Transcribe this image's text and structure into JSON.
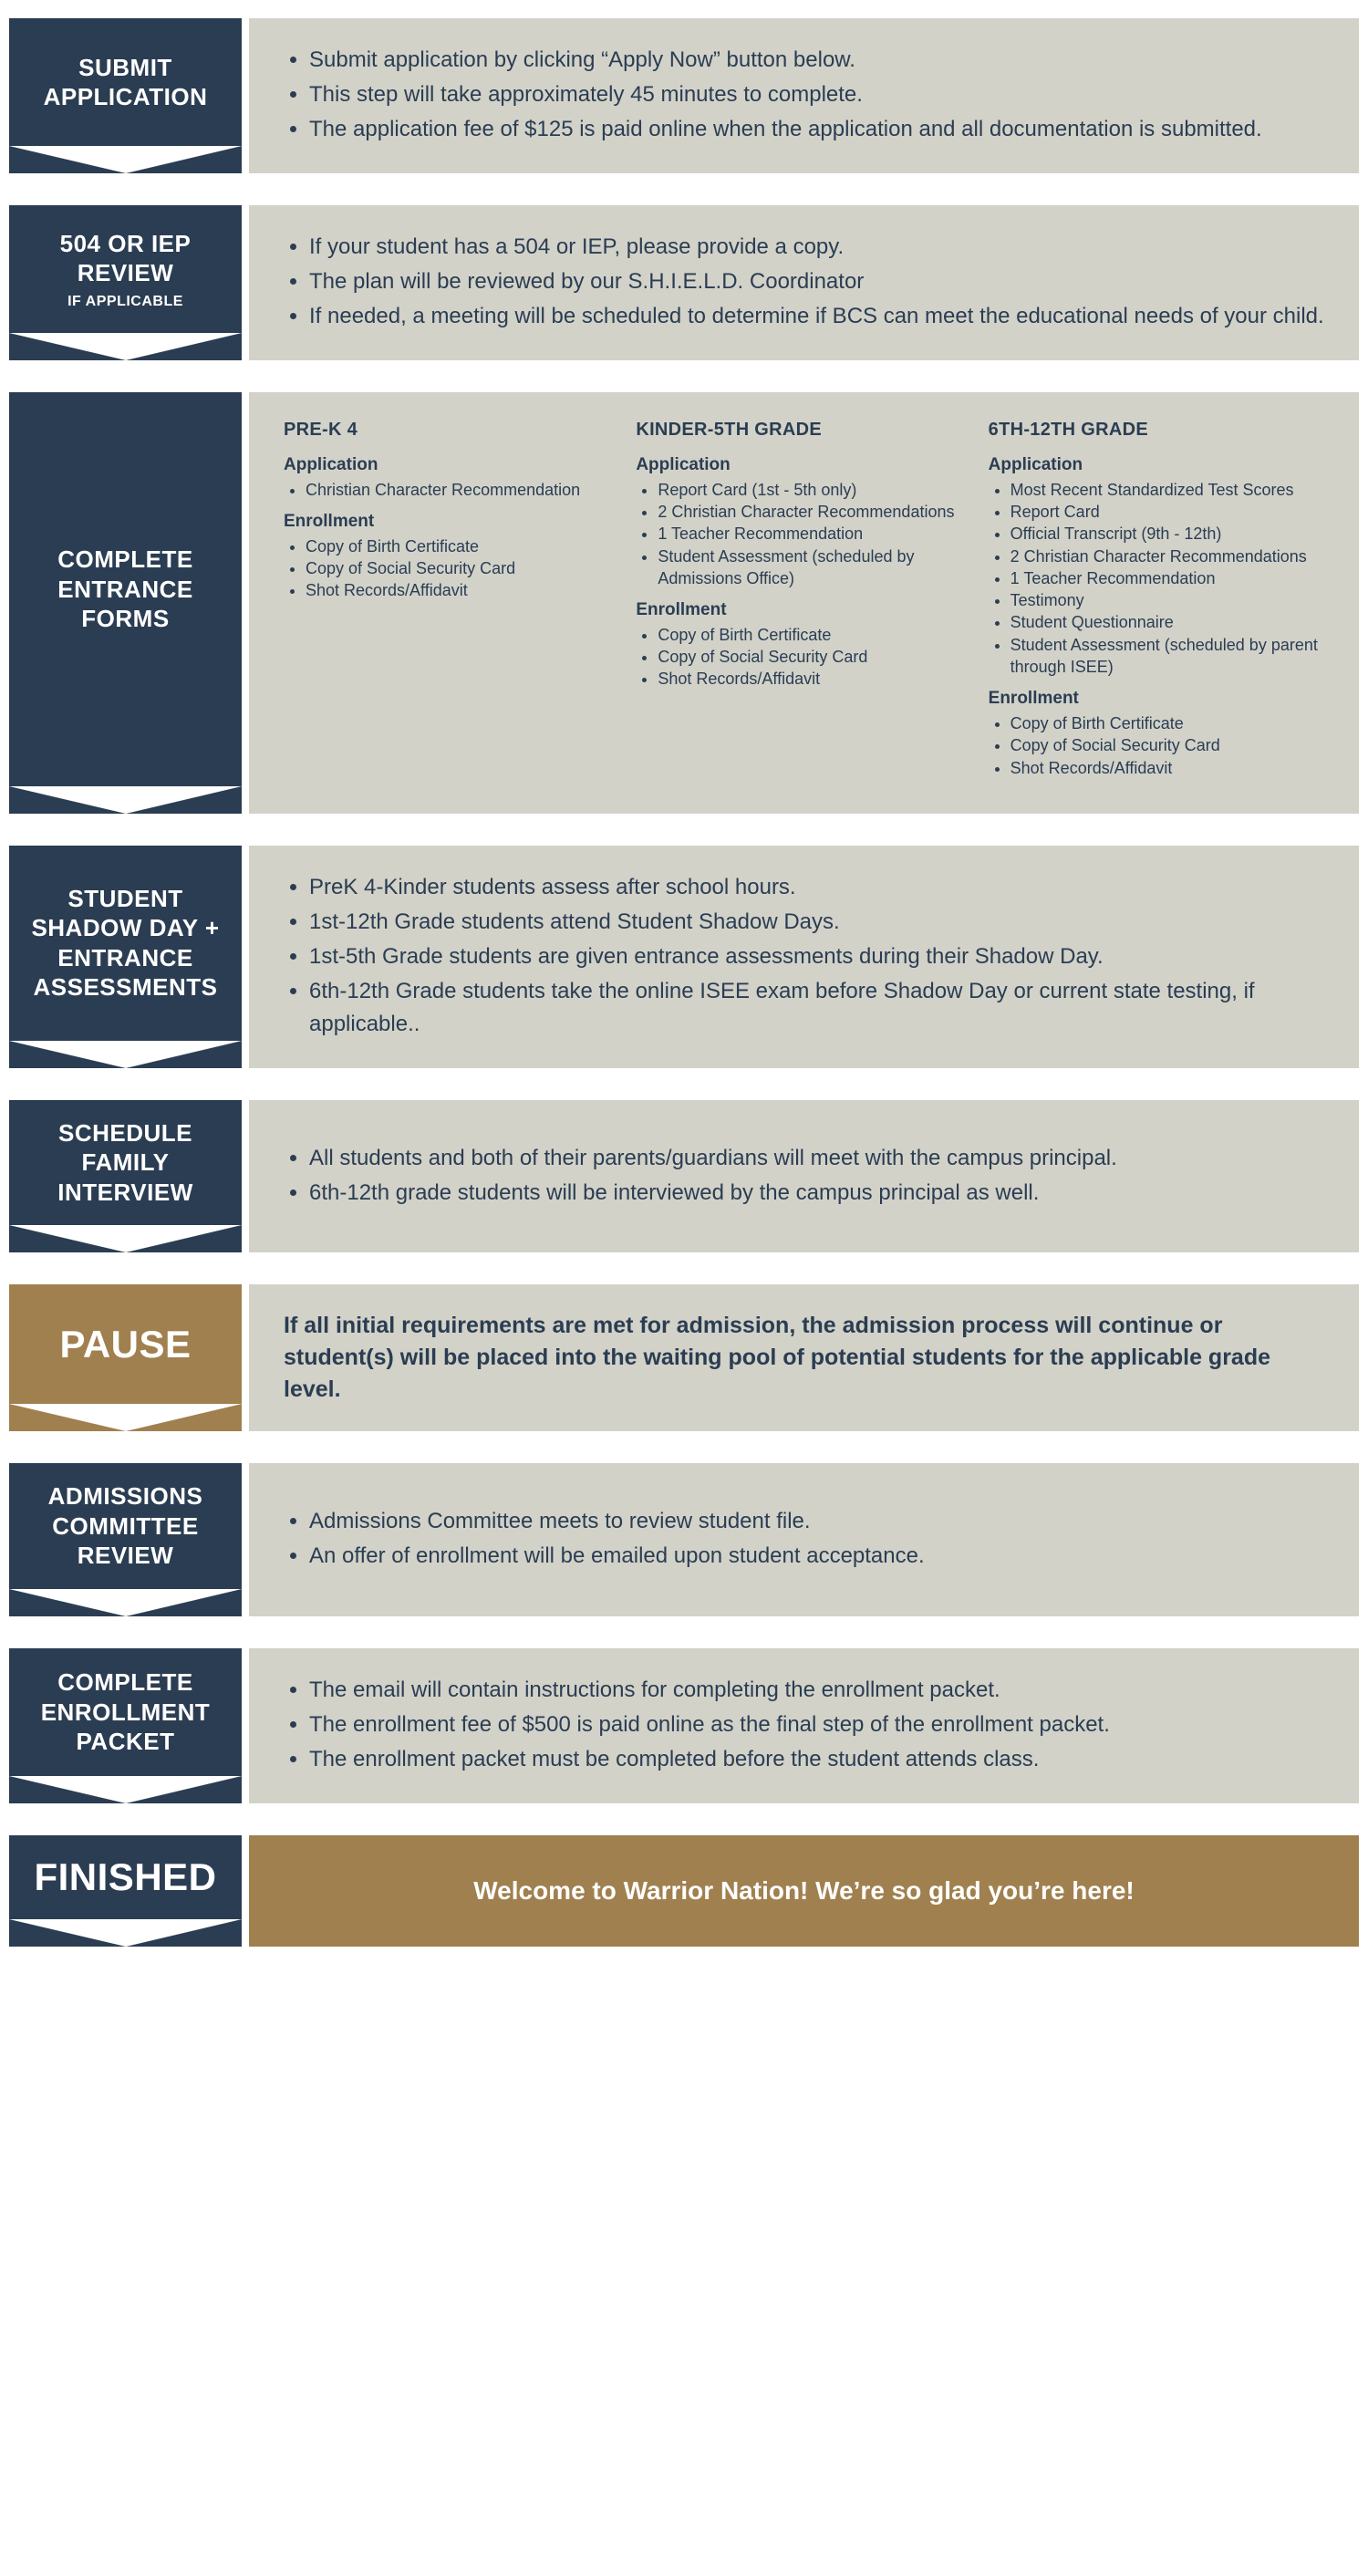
{
  "colors": {
    "navy": "#2b3d52",
    "gold": "#a0804f",
    "panel": "#d2d2c9",
    "white": "#ffffff"
  },
  "steps": [
    {
      "id": "submit",
      "ribbon_style": "navy",
      "title": "SUBMIT APPLICATION",
      "subtitle": "",
      "content_type": "bullets",
      "bullets": [
        "Submit application by clicking “Apply Now” button below.",
        "This step will take approximately 45 minutes to complete.",
        "The application fee of $125 is paid online when the application and all documentation is submitted."
      ]
    },
    {
      "id": "iep",
      "ribbon_style": "navy",
      "title": "504 OR IEP REVIEW",
      "subtitle": "IF APPLICABLE",
      "content_type": "bullets",
      "bullets": [
        "If your student has a 504 or IEP, please provide a copy.",
        "The plan will be reviewed by our S.H.I.E.L.D. Coordinator",
        "If needed, a meeting will be scheduled to determine if BCS can meet the educational needs of your child."
      ]
    },
    {
      "id": "forms",
      "ribbon_style": "navy",
      "title": "COMPLETE ENTRANCE FORMS",
      "subtitle": "",
      "content_type": "columns",
      "columns": [
        {
          "heading": "PRE-K 4",
          "sections": [
            {
              "label": "Application",
              "items": [
                "Christian Character Recommendation"
              ]
            },
            {
              "label": "Enrollment",
              "items": [
                "Copy of Birth Certificate",
                "Copy of Social Security Card",
                "Shot Records/Affidavit"
              ]
            }
          ]
        },
        {
          "heading": "KINDER-5TH GRADE",
          "sections": [
            {
              "label": "Application",
              "items": [
                "Report Card (1st - 5th only)",
                "2 Christian Character Recommendations",
                "1 Teacher Recommendation",
                "Student Assessment (scheduled by Admissions Office)"
              ]
            },
            {
              "label": "Enrollment",
              "items": [
                "Copy of Birth Certificate",
                "Copy of Social Security Card",
                "Shot Records/Affidavit"
              ]
            }
          ]
        },
        {
          "heading": "6TH-12TH GRADE",
          "sections": [
            {
              "label": "Application",
              "items": [
                "Most Recent Standardized Test Scores",
                "Report Card",
                "Official Transcript (9th - 12th)",
                "2 Christian Character Recommendations",
                "1 Teacher Recommendation",
                "Testimony",
                "Student Questionnaire",
                "Student Assessment (scheduled by parent through ISEE)"
              ]
            },
            {
              "label": "Enrollment",
              "items": [
                "Copy of Birth Certificate",
                "Copy of Social Security Card",
                "Shot Records/Affidavit"
              ]
            }
          ]
        }
      ]
    },
    {
      "id": "shadow",
      "ribbon_style": "navy",
      "title": "STUDENT SHADOW DAY + ENTRANCE ASSESSMENTS",
      "subtitle": "",
      "content_type": "bullets",
      "bullets": [
        "PreK 4-Kinder students assess after school hours.",
        "1st-12th Grade students attend Student Shadow Days.",
        "1st-5th Grade students are given entrance assessments during their Shadow Day.",
        "6th-12th Grade students take the online ISEE exam before Shadow Day or current state testing, if applicable.."
      ]
    },
    {
      "id": "interview",
      "ribbon_style": "navy",
      "title": "SCHEDULE FAMILY INTERVIEW",
      "subtitle": "",
      "content_type": "bullets",
      "bullets": [
        "All students and both of their parents/guardians will meet with the campus principal.",
        "6th-12th grade students will be interviewed by the campus principal as well."
      ]
    },
    {
      "id": "pause",
      "ribbon_style": "gold",
      "title": "PAUSE",
      "title_big": true,
      "subtitle": "",
      "content_type": "bold_paragraph",
      "paragraph": "If all initial requirements are met for admission, the admission process will continue or student(s) will be placed into the waiting pool of potential students for the applicable grade level."
    },
    {
      "id": "committee",
      "ribbon_style": "navy",
      "title": "ADMISSIONS COMMITTEE REVIEW",
      "subtitle": "",
      "content_type": "bullets",
      "bullets": [
        "Admissions Committee meets to review student file.",
        "An offer of enrollment will be emailed upon student acceptance."
      ]
    },
    {
      "id": "packet",
      "ribbon_style": "navy",
      "title": "COMPLETE ENROLLMENT PACKET",
      "subtitle": "",
      "content_type": "bullets",
      "bullets": [
        "The email will contain instructions for completing the enrollment packet.",
        "The enrollment fee of $500 is paid online as the final step of the enrollment packet.",
        "The enrollment packet must be completed before the student attends class."
      ]
    },
    {
      "id": "finished",
      "ribbon_style": "navy",
      "title": "FINISHED",
      "title_big": true,
      "subtitle": "",
      "content_type": "gold_banner",
      "banner_text": "Welcome to Warrior Nation! We’re so glad you’re here!"
    }
  ]
}
